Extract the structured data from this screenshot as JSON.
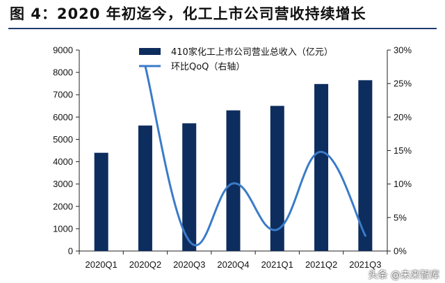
{
  "header": {
    "title": "图 4：2020 年初迄今，化工上市公司营收持续增长"
  },
  "watermark": {
    "text": "头条 @未来智库"
  },
  "colors": {
    "bar": "#0d2d5e",
    "line": "#3a7bc8",
    "rule": "#1f3b6f"
  },
  "chart_data": {
    "type": "bar",
    "title": "",
    "categories": [
      "2020Q1",
      "2020Q2",
      "2020Q3",
      "2020Q4",
      "2021Q1",
      "2021Q2",
      "2021Q3"
    ],
    "series": [
      {
        "name": "410家化工上市公司营业总收入（亿元）",
        "type": "bar",
        "axis": "left",
        "values": [
          4400,
          5620,
          5720,
          6300,
          6500,
          7480,
          7650
        ]
      },
      {
        "name": "环比QoQ（右轴）",
        "type": "line",
        "axis": "right",
        "values": [
          null,
          27.6,
          1.5,
          10.1,
          3.2,
          14.8,
          2.3
        ]
      }
    ],
    "y_left": {
      "min": 0,
      "max": 9000,
      "ticks": [
        "0",
        "1000",
        "2000",
        "3000",
        "4000",
        "5000",
        "6000",
        "7000",
        "8000",
        "9000"
      ]
    },
    "y_right": {
      "min": 0,
      "max": 30,
      "ticks": [
        "0%",
        "5%",
        "10%",
        "15%",
        "20%",
        "25%",
        "30%"
      ]
    },
    "legend_position": "top-center",
    "grid": false
  }
}
